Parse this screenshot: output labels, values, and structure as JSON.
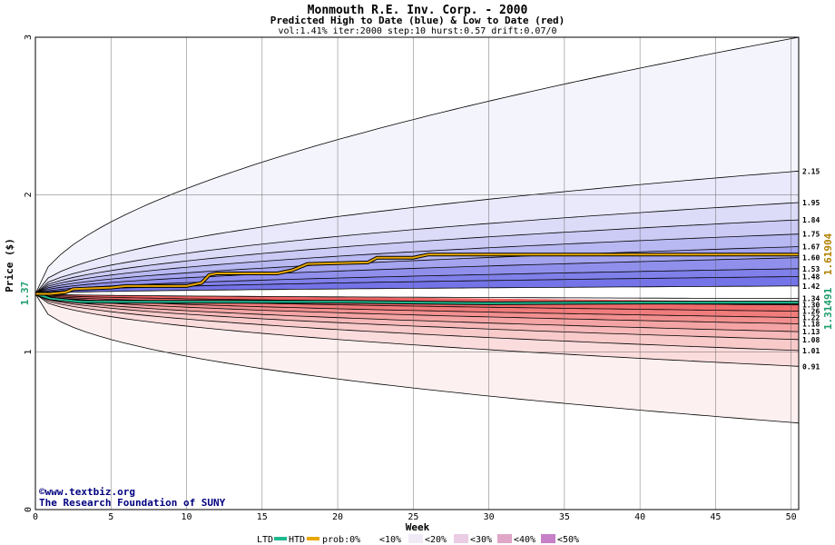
{
  "chart_data": {
    "type": "area",
    "title": "Monmouth R.E. Inv. Corp. - 2000",
    "subtitle": "Predicted High to Date (blue) &  Low to Date (red)",
    "params": "vol:1.41% iter:2000 step:10 hurst:0.57 drift:0.07/0",
    "xlabel": "Week",
    "ylabel": "Price ($)",
    "xlim": [
      0,
      50.5
    ],
    "ylim": [
      0,
      3
    ],
    "x_ticks": [
      0,
      5,
      10,
      15,
      20,
      25,
      30,
      35,
      40,
      45,
      50
    ],
    "y_ticks": [
      0,
      1,
      2,
      3
    ],
    "grid": true,
    "start_price": 1.37,
    "start_label": "1.37",
    "end_labels": {
      "htd": "1.61904",
      "ltd": "1.31491"
    },
    "colors": {
      "htd": "#e8a800",
      "ltd": "#20b890",
      "upper_fill": "#7070ee",
      "lower_fill": "#f06a6a"
    },
    "upper_band_end_values": [
      2.15,
      1.95,
      1.84,
      1.75,
      1.67,
      1.6,
      1.53,
      1.48,
      1.42
    ],
    "lower_band_end_values": [
      1.34,
      1.3,
      1.26,
      1.22,
      1.18,
      1.13,
      1.08,
      1.01,
      0.91
    ],
    "right_labels": [
      "2.15",
      "1.95",
      "1.84",
      "1.75",
      "1.67",
      "1.60",
      "1.53",
      "1.48",
      "1.42",
      "1.34",
      "1.30",
      "1.26",
      "1.22",
      "1.18",
      "1.13",
      "1.08",
      "1.01",
      "0.91"
    ],
    "outer_upper_end": 3.0,
    "outer_lower_end": 0.55,
    "htd_series": {
      "x": [
        0,
        1,
        2,
        2.5,
        5,
        6,
        10,
        11,
        11.5,
        12,
        16,
        17,
        18,
        22,
        22.6,
        25,
        26,
        35,
        50.5
      ],
      "y": [
        1.37,
        1.37,
        1.38,
        1.4,
        1.41,
        1.42,
        1.42,
        1.44,
        1.49,
        1.5,
        1.5,
        1.52,
        1.56,
        1.57,
        1.6,
        1.6,
        1.62,
        1.62,
        1.62
      ]
    },
    "ltd_series": {
      "x": [
        0,
        1,
        3,
        10,
        20,
        30,
        40,
        50.5
      ],
      "y": [
        1.37,
        1.34,
        1.32,
        1.32,
        1.32,
        1.31,
        1.315,
        1.315
      ]
    },
    "legend": {
      "ltd": "LTD",
      "htd": "HTD",
      "prob": "prob:0%",
      "items": [
        "<10%",
        "<20%",
        "<30%",
        "<40%",
        "<50%"
      ]
    }
  },
  "credit": {
    "line1": "©www.textbiz.org",
    "line2": "The Research Foundation of SUNY"
  }
}
